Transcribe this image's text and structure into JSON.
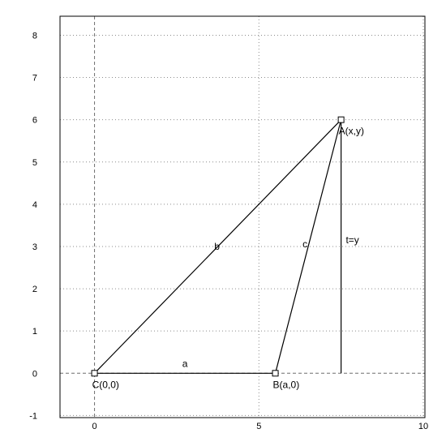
{
  "chart_data": {
    "type": "diagram",
    "xlim": [
      -1.05,
      10.05
    ],
    "ylim": [
      -1.05,
      8.45
    ],
    "x_ticks": [
      0,
      5,
      10
    ],
    "y_ticks": [
      -1,
      0,
      1,
      2,
      3,
      4,
      5,
      6,
      7,
      8
    ],
    "grid": true,
    "points": [
      {
        "id": "C",
        "label": "C(0,0)",
        "x": 0,
        "y": 0
      },
      {
        "id": "B",
        "label": "B(a,0)",
        "x": 5.5,
        "y": 0
      },
      {
        "id": "A",
        "label": "A(x,y)",
        "x": 7.5,
        "y": 6
      }
    ],
    "segments": [
      {
        "from": "C",
        "to": "B",
        "label": "a"
      },
      {
        "from": "C",
        "to": "A",
        "label": "b"
      },
      {
        "from": "B",
        "to": "A",
        "label": "c"
      },
      {
        "from": "A",
        "to": "foot",
        "label": "t=y"
      }
    ],
    "foot": {
      "x": 7.5,
      "y": 0
    }
  }
}
